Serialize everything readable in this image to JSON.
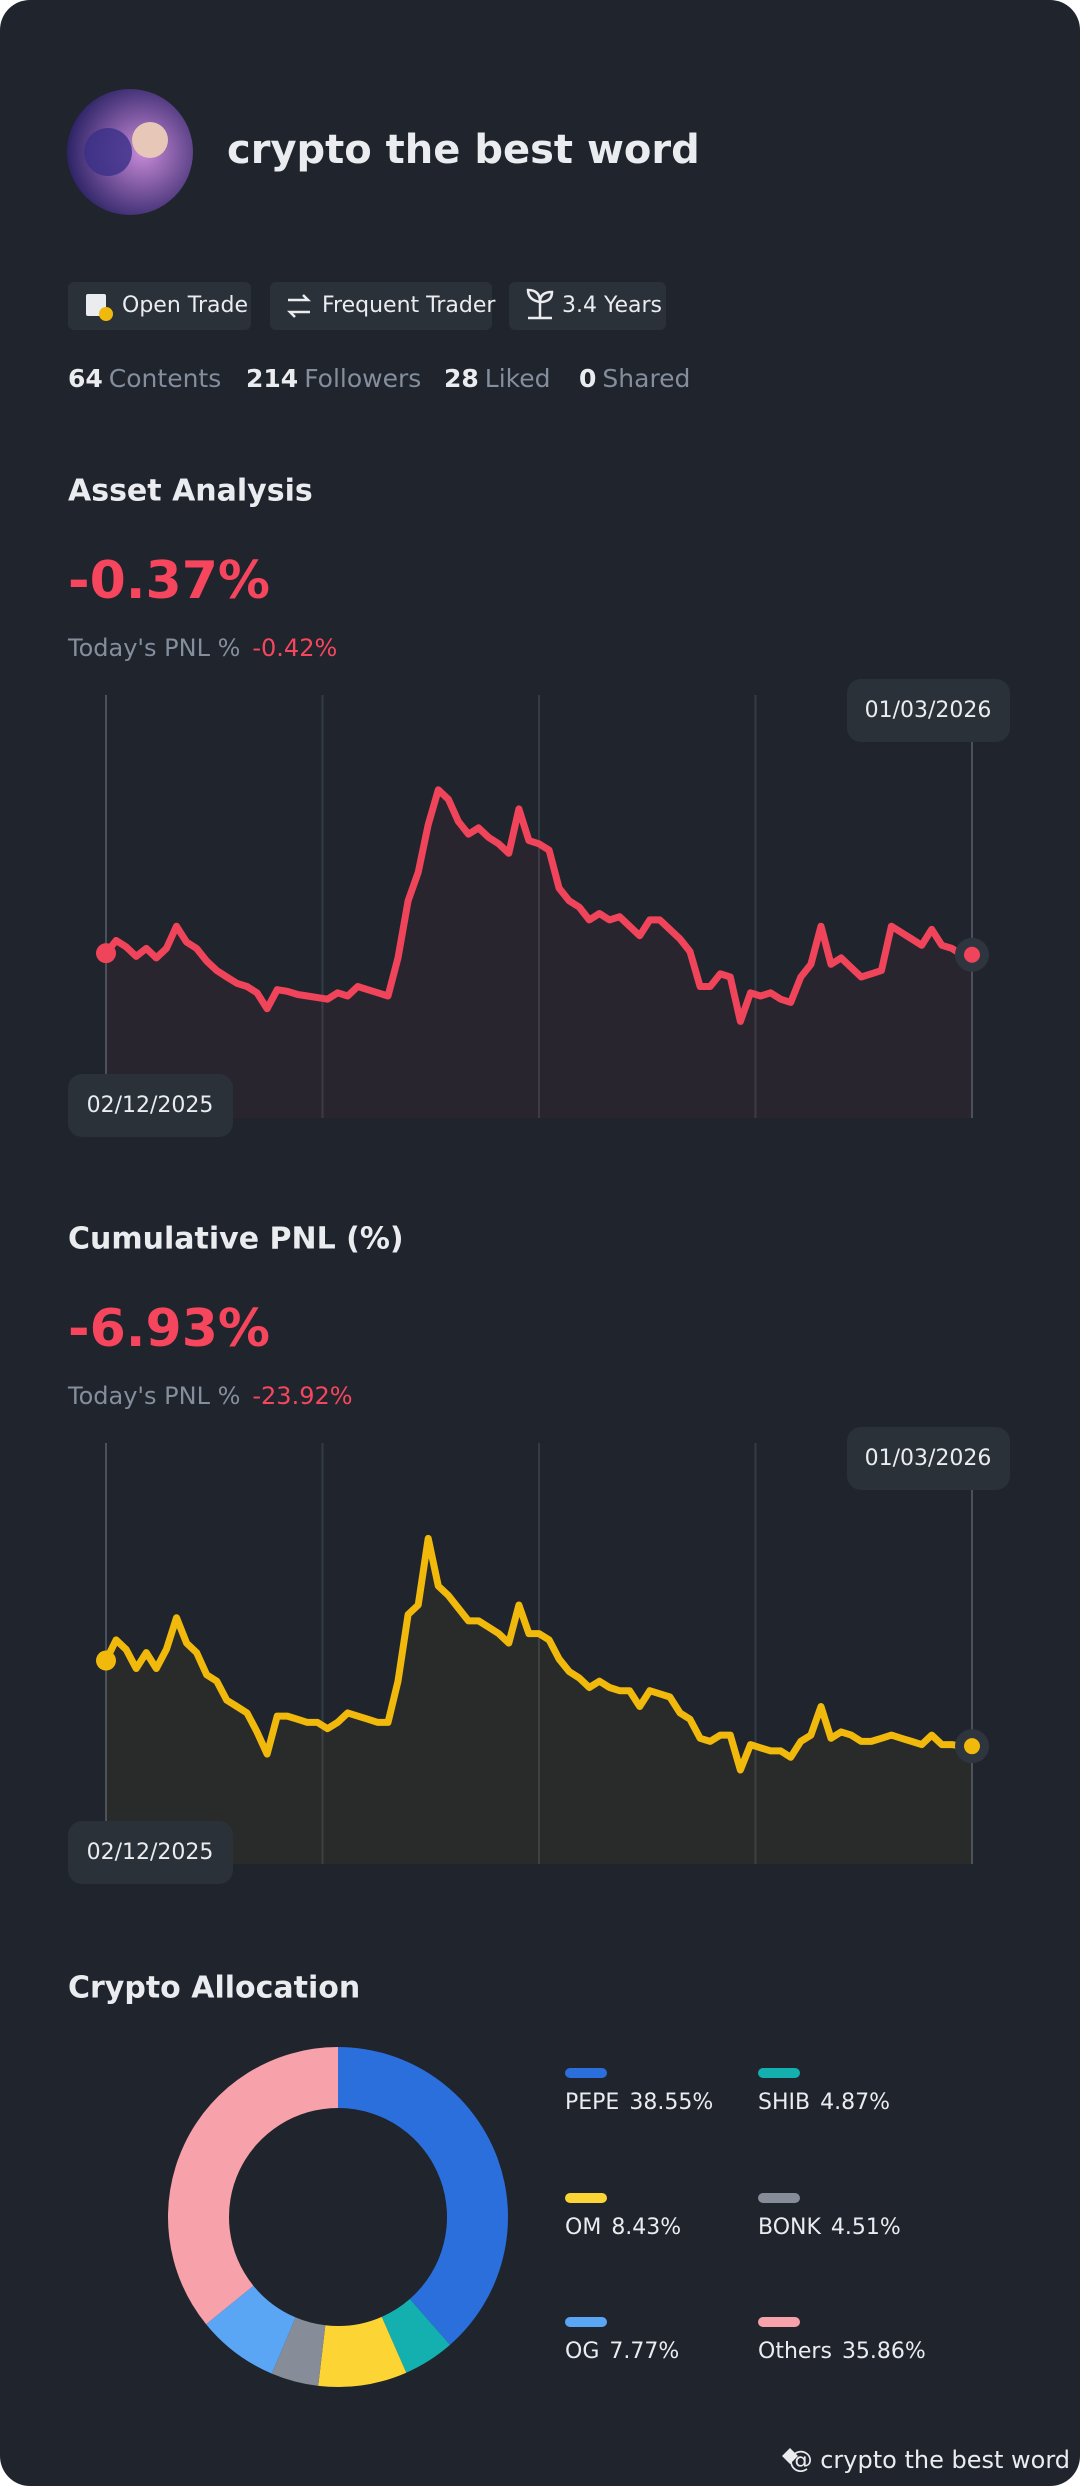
{
  "profile": {
    "name": "crypto the best word"
  },
  "badges": [
    "Open Trade",
    "Frequent Trader",
    "3.4 Years"
  ],
  "stats": [
    {
      "value": "64",
      "label": "Contents"
    },
    {
      "value": "214",
      "label": "Followers"
    },
    {
      "value": "28",
      "label": "Liked"
    },
    {
      "value": "0",
      "label": "Shared"
    }
  ],
  "chart_data": [
    {
      "type": "line",
      "title": "Asset Analysis",
      "headline": "-0.37%",
      "pnl_label": "Today's PNL %",
      "pnl_value": "-0.42%",
      "start_label": "02/12/2025",
      "end_label": "01/03/2026",
      "color": "#f0445a",
      "values": [
        59,
        67,
        63,
        57,
        62,
        56,
        62,
        76,
        66,
        62,
        54,
        48,
        44,
        40,
        38,
        34,
        24,
        36,
        35,
        33,
        32,
        31,
        30,
        34,
        32,
        38,
        36,
        34,
        32,
        56,
        92,
        110,
        140,
        162,
        156,
        142,
        134,
        138,
        132,
        128,
        122,
        150,
        130,
        128,
        124,
        100,
        92,
        88,
        80,
        84,
        80,
        82,
        76,
        70,
        80,
        80,
        74,
        68,
        60,
        38,
        38,
        46,
        44,
        16,
        34,
        32,
        34,
        30,
        28,
        44,
        52,
        76,
        52,
        56,
        50,
        44,
        46,
        48,
        76,
        72,
        68,
        64,
        74,
        64,
        62,
        58,
        58
      ]
    },
    {
      "type": "line",
      "title": "Cumulative PNL (%)",
      "headline": "-6.93%",
      "pnl_label": "Today's PNL %",
      "pnl_value": "-23.92%",
      "start_label": "02/12/2025",
      "end_label": "01/03/2026",
      "color": "#f0b90b",
      "values": [
        59,
        72,
        66,
        54,
        64,
        54,
        66,
        86,
        70,
        64,
        50,
        46,
        34,
        30,
        26,
        14,
        0,
        24,
        24,
        22,
        20,
        20,
        16,
        20,
        26,
        24,
        22,
        20,
        20,
        46,
        88,
        94,
        136,
        106,
        100,
        92,
        84,
        84,
        80,
        76,
        70,
        94,
        76,
        76,
        72,
        60,
        52,
        48,
        42,
        46,
        42,
        40,
        40,
        30,
        40,
        38,
        36,
        26,
        22,
        10,
        8,
        12,
        12,
        -10,
        6,
        4,
        2,
        2,
        -2,
        8,
        12,
        30,
        10,
        14,
        12,
        8,
        8,
        10,
        12,
        10,
        8,
        6,
        12,
        6,
        6,
        5,
        5
      ]
    },
    {
      "type": "pie",
      "title": "Crypto Allocation",
      "categories": [
        "PEPE",
        "SHIB",
        "OM",
        "BONK",
        "OG",
        "Others"
      ],
      "values": [
        38.55,
        4.87,
        8.43,
        4.51,
        7.77,
        35.86
      ],
      "value_labels": [
        "38.55%",
        "4.87%",
        "8.43%",
        "4.51%",
        "7.77%",
        "35.86%"
      ],
      "colors": [
        "#2a6fdb",
        "#14b0b0",
        "#fcd535",
        "#868c98",
        "#5aa6f5",
        "#f7a1aa"
      ]
    }
  ],
  "footer": "@ crypto the best word"
}
